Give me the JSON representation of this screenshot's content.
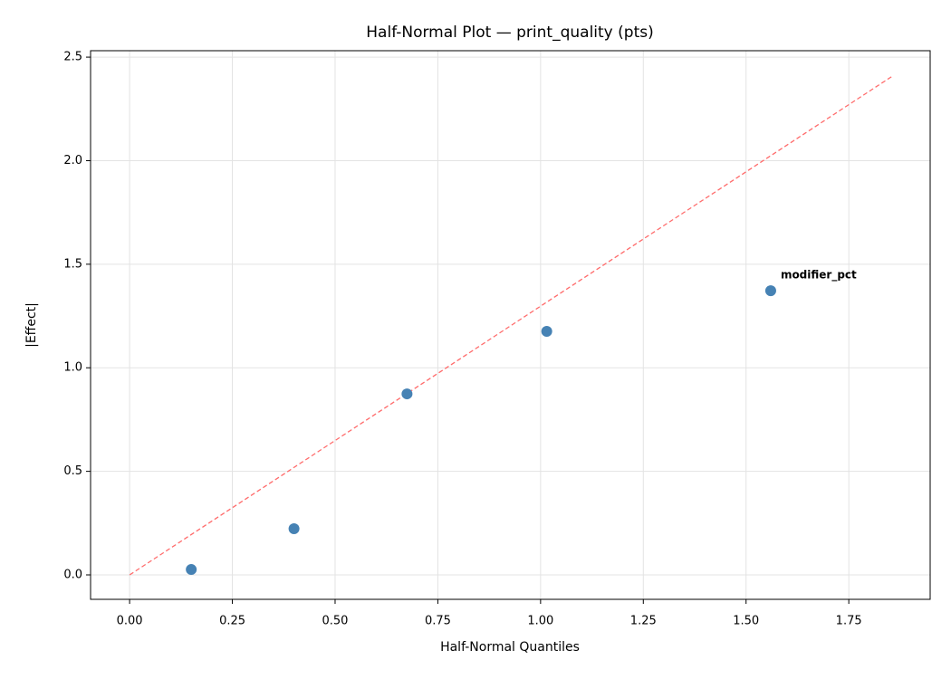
{
  "chart_data": {
    "type": "scatter",
    "title": "Half-Normal Plot — print_quality (pts)",
    "x_label": "Half-Normal Quantiles",
    "y_label": "|Effect|",
    "x": [
      0.15,
      0.4,
      0.675,
      1.015,
      1.56
    ],
    "values": [
      0.026,
      0.223,
      0.874,
      1.176,
      1.372
    ],
    "color": "#4682b4",
    "reference_line": {
      "x": [
        0,
        1.856
      ],
      "values": [
        0,
        2.408
      ],
      "color": "#ff6b6b",
      "dashed": true
    },
    "annotations": [
      {
        "text": "modifier_pct",
        "color": "#ff0000"
      }
    ],
    "xlim": [
      -0.095,
      1.948
    ],
    "ylim": [
      -0.118,
      2.531
    ],
    "xticks": [
      {
        "value": 0,
        "label": "0.00"
      },
      0.25,
      {
        "value": 0.5,
        "label": "0.50"
      },
      0.75,
      {
        "value": 1,
        "label": "1.00"
      },
      1.25,
      {
        "value": 1.5,
        "label": "1.50"
      },
      1.75
    ],
    "yticks": [
      {
        "value": 0,
        "label": "0.0"
      },
      0.5,
      {
        "value": 1,
        "label": "1.0"
      },
      1.5,
      {
        "value": 2,
        "label": "2.0"
      },
      2.5
    ],
    "grid": true
  }
}
